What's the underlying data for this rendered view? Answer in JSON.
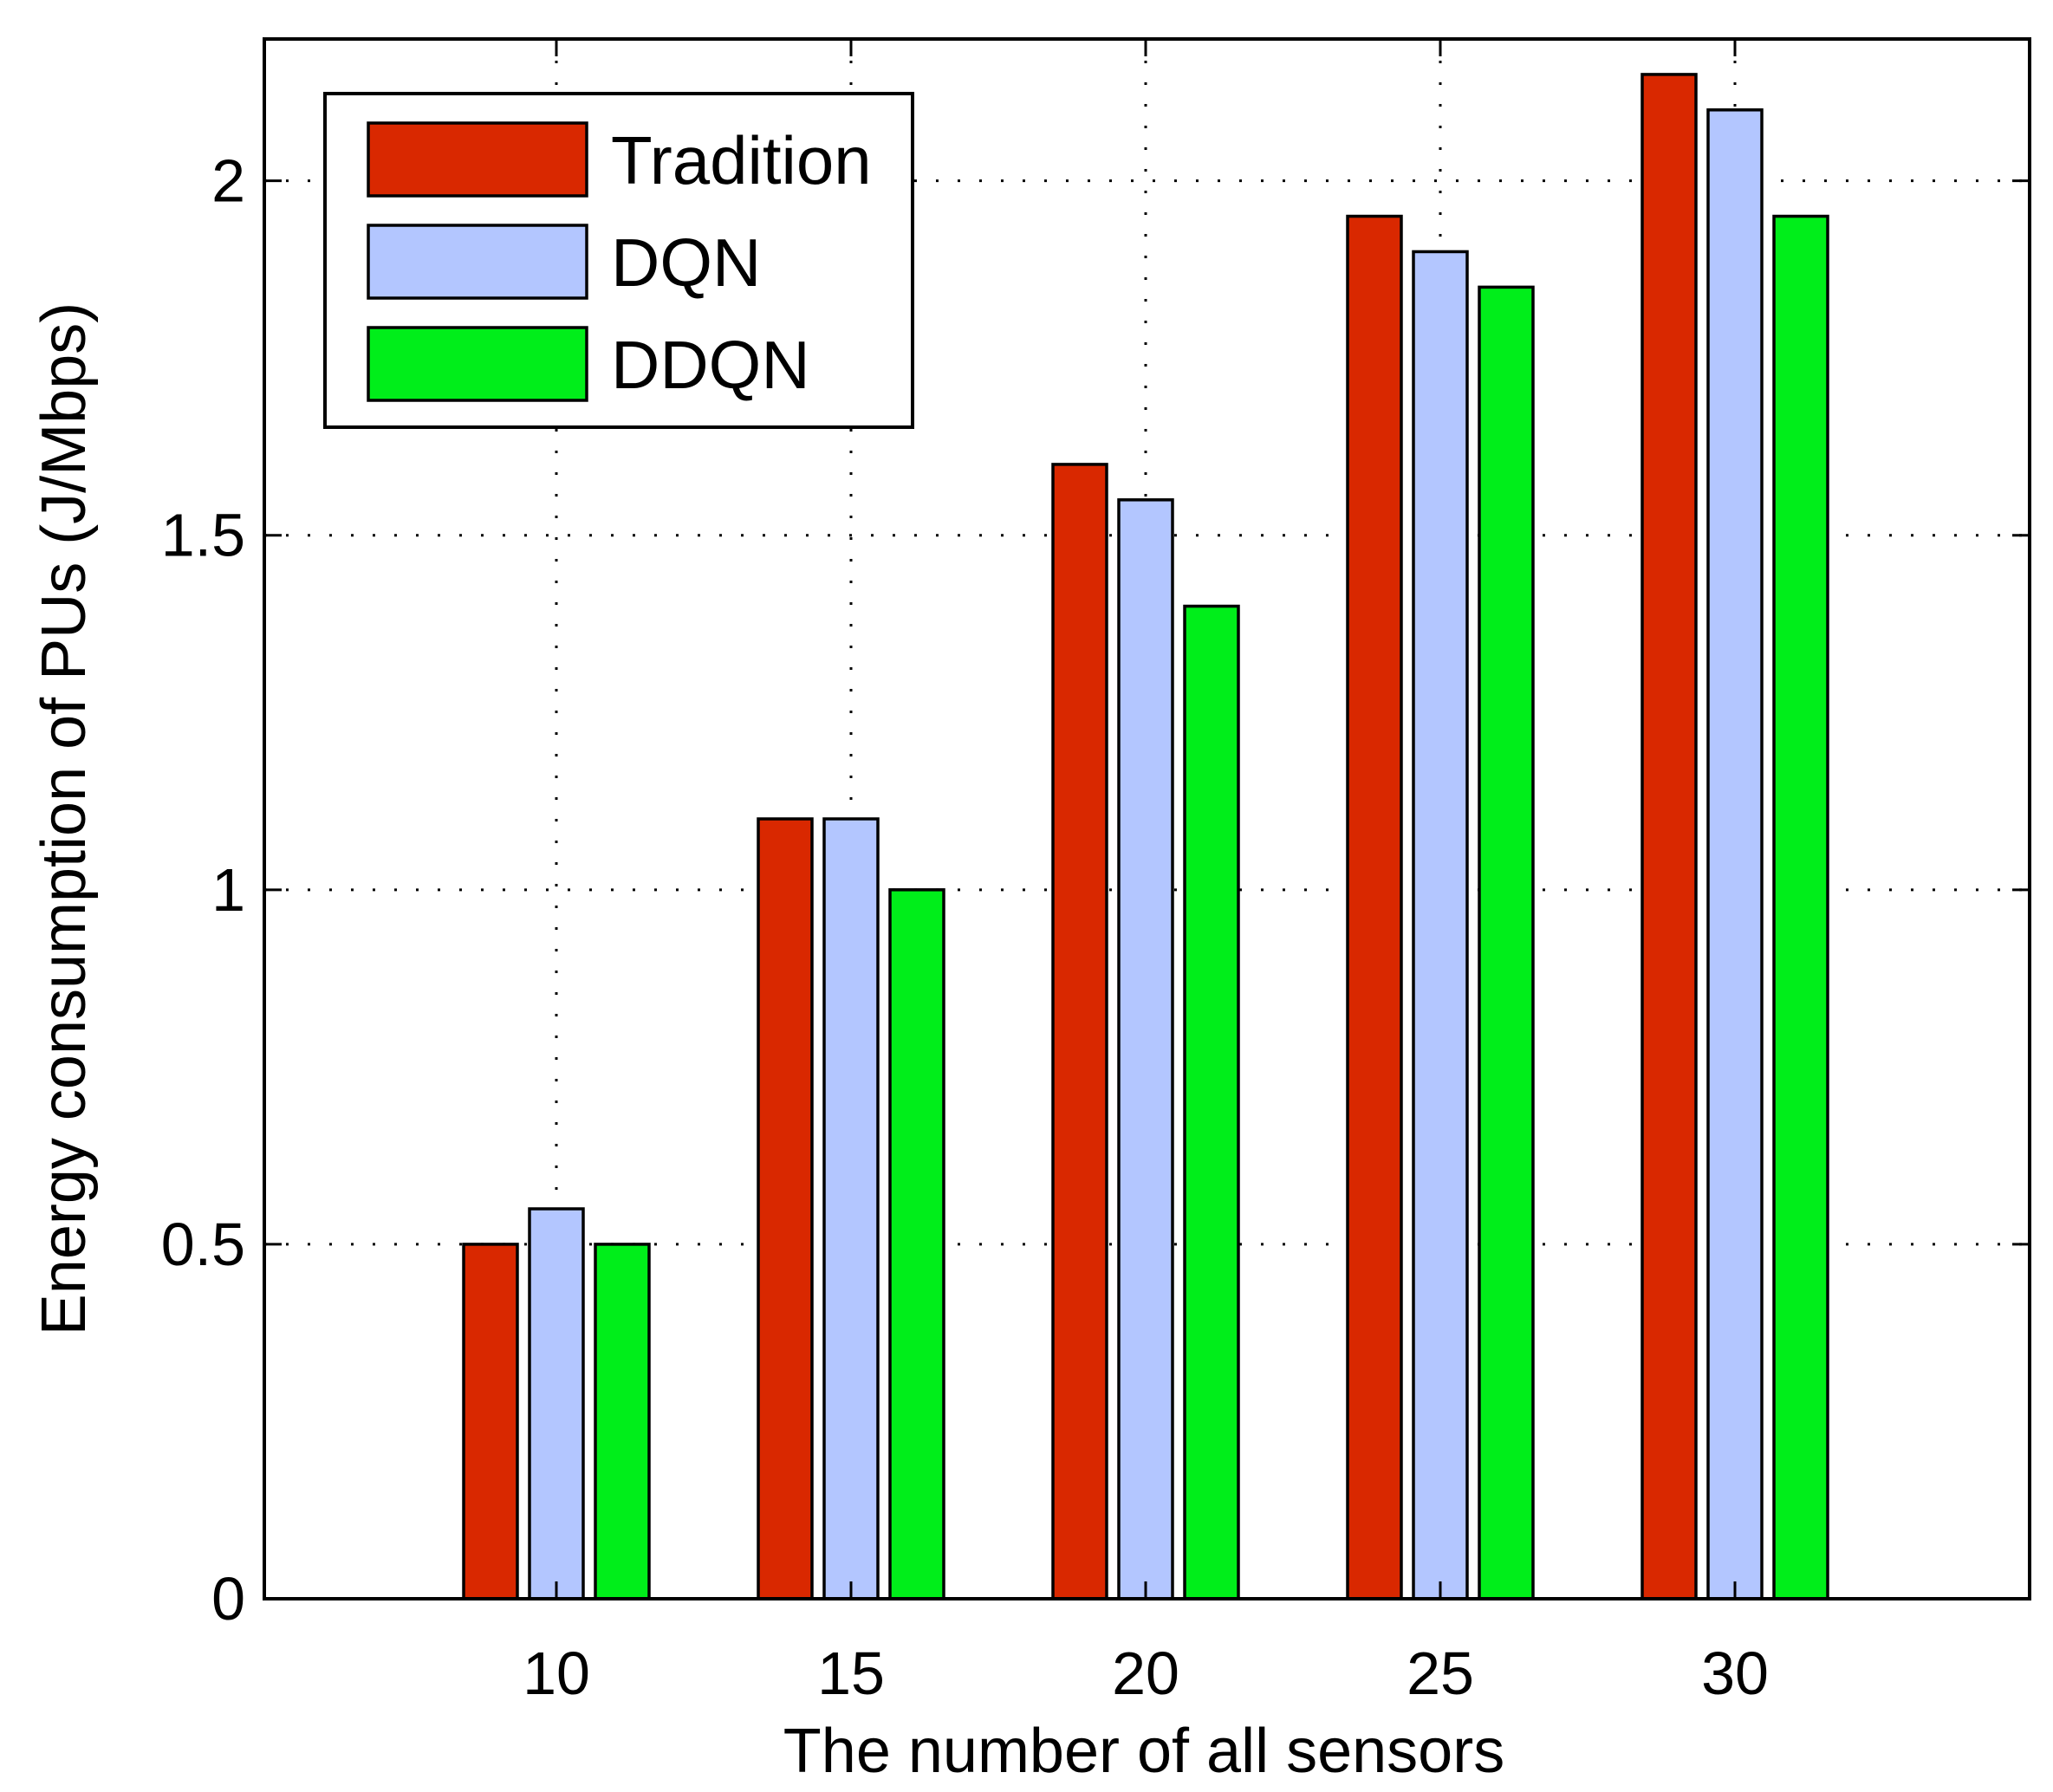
{
  "chart_data": {
    "type": "bar",
    "title": "",
    "xlabel": "The number of all sensors",
    "ylabel": "Energy consumption of PUs (J/Mbps)",
    "categories": [
      "10",
      "15",
      "20",
      "25",
      "30"
    ],
    "series": [
      {
        "name": "Tradition",
        "color": "#d92800",
        "values": [
          0.5,
          1.1,
          1.6,
          1.95,
          2.15
        ]
      },
      {
        "name": "DQN",
        "color": "#b3c6ff",
        "values": [
          0.55,
          1.1,
          1.55,
          1.9,
          2.1
        ]
      },
      {
        "name": "DDQN",
        "color": "#00ee1a",
        "values": [
          0.5,
          1.0,
          1.4,
          1.85,
          1.95
        ]
      }
    ],
    "ylim": [
      0,
      2.2
    ],
    "yticks": [
      0,
      0.5,
      1,
      1.5,
      2
    ],
    "ytick_labels": [
      "0",
      "0.5",
      "1",
      "1.5",
      "2"
    ],
    "grid": true,
    "legend_position": "top-left"
  }
}
